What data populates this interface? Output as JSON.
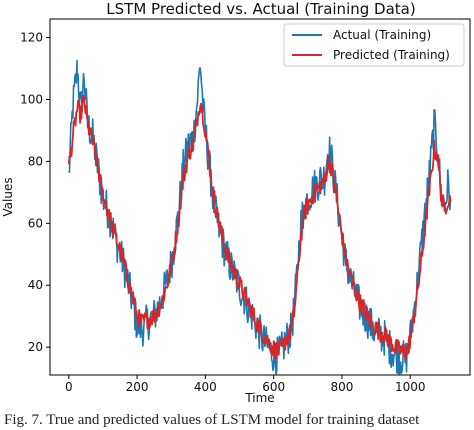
{
  "caption": "Fig. 7.   True and predicted values of LSTM model for training dataset",
  "chart_data": {
    "type": "line",
    "title": "LSTM Predicted vs. Actual (Training Data)",
    "xlabel": "Time",
    "ylabel": "Values",
    "xlim": [
      -55,
      1175
    ],
    "ylim": [
      11,
      126
    ],
    "xticks": [
      0,
      200,
      400,
      600,
      800,
      1000
    ],
    "yticks": [
      20,
      40,
      60,
      80,
      100,
      120
    ],
    "legend_position": "top-right",
    "grid": false,
    "series": [
      {
        "name": "Actual (Training)",
        "color": "#1f77b4",
        "keypoints": [
          [
            0,
            75
          ],
          [
            12,
            98
          ],
          [
            25,
            110
          ],
          [
            35,
            96
          ],
          [
            45,
            108
          ],
          [
            55,
            92
          ],
          [
            70,
            88
          ],
          [
            85,
            78
          ],
          [
            100,
            68
          ],
          [
            115,
            64
          ],
          [
            130,
            58
          ],
          [
            145,
            52
          ],
          [
            160,
            47
          ],
          [
            175,
            40
          ],
          [
            190,
            33
          ],
          [
            200,
            27
          ],
          [
            215,
            26
          ],
          [
            230,
            28
          ],
          [
            250,
            30
          ],
          [
            270,
            35
          ],
          [
            290,
            42
          ],
          [
            305,
            50
          ],
          [
            320,
            62
          ],
          [
            335,
            78
          ],
          [
            350,
            85
          ],
          [
            365,
            88
          ],
          [
            375,
            98
          ],
          [
            385,
            112
          ],
          [
            395,
            95
          ],
          [
            410,
            80
          ],
          [
            425,
            66
          ],
          [
            440,
            58
          ],
          [
            455,
            52
          ],
          [
            470,
            47
          ],
          [
            490,
            42
          ],
          [
            510,
            37
          ],
          [
            530,
            32
          ],
          [
            550,
            27
          ],
          [
            570,
            22
          ],
          [
            590,
            19
          ],
          [
            605,
            17
          ],
          [
            620,
            18
          ],
          [
            635,
            22
          ],
          [
            650,
            25
          ],
          [
            660,
            32
          ],
          [
            670,
            46
          ],
          [
            680,
            60
          ],
          [
            690,
            66
          ],
          [
            700,
            68
          ],
          [
            720,
            72
          ],
          [
            735,
            74
          ],
          [
            750,
            75
          ],
          [
            760,
            85
          ],
          [
            770,
            80
          ],
          [
            780,
            72
          ],
          [
            795,
            60
          ],
          [
            810,
            48
          ],
          [
            830,
            40
          ],
          [
            850,
            34
          ],
          [
            870,
            30
          ],
          [
            890,
            26
          ],
          [
            910,
            24
          ],
          [
            925,
            23
          ],
          [
            940,
            20
          ],
          [
            955,
            18
          ],
          [
            970,
            17
          ],
          [
            985,
            16
          ],
          [
            995,
            19
          ],
          [
            1005,
            27
          ],
          [
            1020,
            40
          ],
          [
            1035,
            55
          ],
          [
            1050,
            70
          ],
          [
            1060,
            80
          ],
          [
            1070,
            92
          ],
          [
            1080,
            85
          ],
          [
            1090,
            70
          ],
          [
            1100,
            65
          ],
          [
            1110,
            72
          ],
          [
            1118,
            68
          ]
        ],
        "noise": 6
      },
      {
        "name": "Predicted (Training)",
        "color": "#d62728",
        "keypoints": [
          [
            0,
            78
          ],
          [
            12,
            88
          ],
          [
            25,
            97
          ],
          [
            35,
            95
          ],
          [
            45,
            100
          ],
          [
            55,
            92
          ],
          [
            70,
            86
          ],
          [
            85,
            78
          ],
          [
            100,
            69
          ],
          [
            115,
            64
          ],
          [
            130,
            58
          ],
          [
            145,
            53
          ],
          [
            160,
            48
          ],
          [
            175,
            41
          ],
          [
            190,
            35
          ],
          [
            200,
            30
          ],
          [
            215,
            28
          ],
          [
            230,
            29
          ],
          [
            250,
            30
          ],
          [
            270,
            34
          ],
          [
            290,
            41
          ],
          [
            305,
            49
          ],
          [
            320,
            60
          ],
          [
            335,
            74
          ],
          [
            350,
            82
          ],
          [
            365,
            86
          ],
          [
            375,
            93
          ],
          [
            385,
            100
          ],
          [
            395,
            94
          ],
          [
            410,
            81
          ],
          [
            425,
            68
          ],
          [
            440,
            60
          ],
          [
            455,
            53
          ],
          [
            470,
            48
          ],
          [
            490,
            43
          ],
          [
            510,
            38
          ],
          [
            530,
            33
          ],
          [
            550,
            28
          ],
          [
            570,
            24
          ],
          [
            590,
            21
          ],
          [
            605,
            19
          ],
          [
            620,
            19
          ],
          [
            635,
            22
          ],
          [
            650,
            25
          ],
          [
            660,
            31
          ],
          [
            670,
            43
          ],
          [
            680,
            56
          ],
          [
            690,
            63
          ],
          [
            700,
            66
          ],
          [
            720,
            70
          ],
          [
            735,
            72
          ],
          [
            750,
            74
          ],
          [
            760,
            80
          ],
          [
            770,
            78
          ],
          [
            780,
            71
          ],
          [
            795,
            60
          ],
          [
            810,
            49
          ],
          [
            830,
            41
          ],
          [
            850,
            35
          ],
          [
            870,
            31
          ],
          [
            890,
            27
          ],
          [
            910,
            25
          ],
          [
            925,
            24
          ],
          [
            940,
            22
          ],
          [
            955,
            20
          ],
          [
            970,
            19
          ],
          [
            985,
            18
          ],
          [
            995,
            20
          ],
          [
            1005,
            26
          ],
          [
            1020,
            37
          ],
          [
            1035,
            50
          ],
          [
            1050,
            65
          ],
          [
            1060,
            74
          ],
          [
            1070,
            84
          ],
          [
            1080,
            82
          ],
          [
            1090,
            70
          ],
          [
            1100,
            64
          ],
          [
            1110,
            68
          ],
          [
            1118,
            67
          ]
        ],
        "noise": 3
      }
    ]
  }
}
